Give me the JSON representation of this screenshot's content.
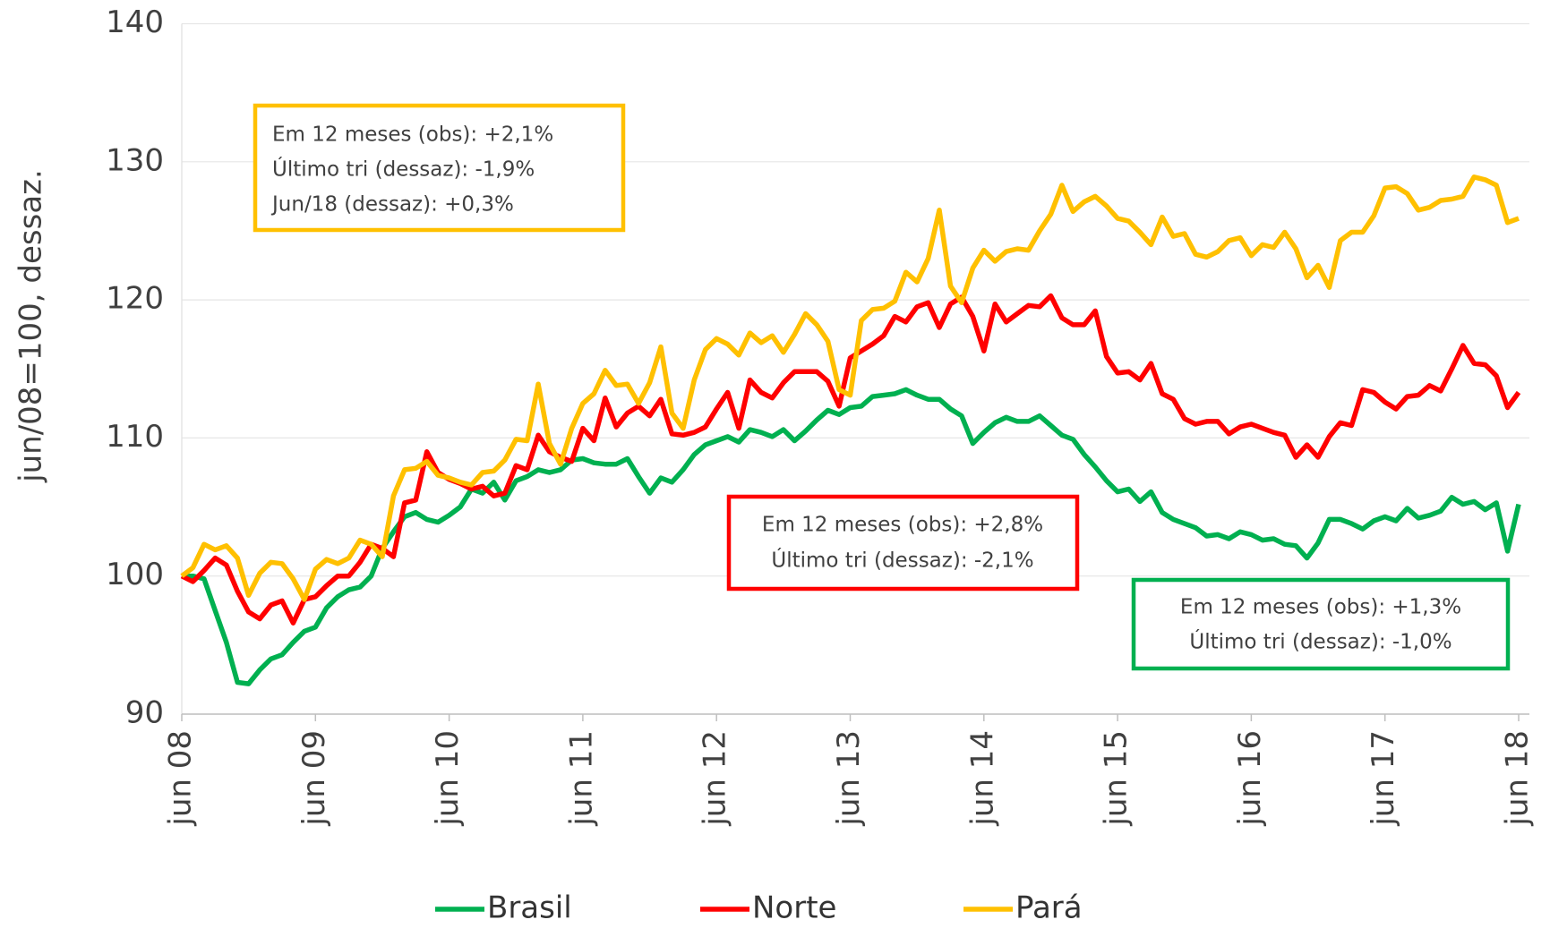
{
  "chart_data": {
    "type": "line",
    "y_label": "jun/08=100, dessaz.",
    "categories": [
      "jun 08",
      null,
      null,
      null,
      null,
      null,
      null,
      null,
      null,
      null,
      null,
      null,
      "jun 09",
      null,
      null,
      null,
      null,
      null,
      null,
      null,
      null,
      null,
      null,
      null,
      "jun 10",
      null,
      null,
      null,
      null,
      null,
      null,
      null,
      null,
      null,
      null,
      null,
      "jun 11",
      null,
      null,
      null,
      null,
      null,
      null,
      null,
      null,
      null,
      null,
      null,
      "jun 12",
      null,
      null,
      null,
      null,
      null,
      null,
      null,
      null,
      null,
      null,
      null,
      "jun 13",
      null,
      null,
      null,
      null,
      null,
      null,
      null,
      null,
      null,
      null,
      null,
      "jun 14",
      null,
      null,
      null,
      null,
      null,
      null,
      null,
      null,
      null,
      null,
      null,
      "jun 15",
      null,
      null,
      null,
      null,
      null,
      null,
      null,
      null,
      null,
      null,
      null,
      "jun 16",
      null,
      null,
      null,
      null,
      null,
      null,
      null,
      null,
      null,
      null,
      null,
      "jun 17",
      null,
      null,
      null,
      null,
      null,
      null,
      null,
      null,
      null,
      null,
      null,
      "jun 18"
    ],
    "series": [
      {
        "name": "Brasil",
        "color": "#00b050",
        "values": [
          100,
          100,
          99.8,
          97.5,
          95.2,
          92.3,
          92.2,
          93.2,
          94,
          94.3,
          95.2,
          96,
          96.3,
          97.7,
          98.5,
          99,
          99.2,
          100,
          102,
          103.2,
          104.3,
          104.6,
          104.1,
          103.9,
          104.4,
          105,
          106.3,
          106,
          106.8,
          105.5,
          106.9,
          107.2,
          107.7,
          107.5,
          107.7,
          108.4,
          108.5,
          108.2,
          108.1,
          108.1,
          108.5,
          107.2,
          106,
          107.1,
          106.8,
          107.7,
          108.8,
          109.5,
          109.8,
          110.1,
          109.7,
          110.6,
          110.4,
          110.1,
          110.6,
          109.8,
          110.5,
          111.3,
          112,
          111.7,
          112.2,
          112.3,
          113,
          113.1,
          113.2,
          113.5,
          113.1,
          112.8,
          112.8,
          112.1,
          111.6,
          109.6,
          110.4,
          111.1,
          111.5,
          111.2,
          111.2,
          111.6,
          110.9,
          110.2,
          109.9,
          108.8,
          107.9,
          106.9,
          106.1,
          106.3,
          105.4,
          106.1,
          104.6,
          104.1,
          103.8,
          103.5,
          102.9,
          103,
          102.7,
          103.2,
          103,
          102.6,
          102.7,
          102.3,
          102.2,
          101.3,
          102.4,
          104.1,
          104.1,
          103.8,
          103.4,
          104,
          104.3,
          104,
          104.9,
          104.2,
          104.4,
          104.7,
          105.7,
          105.2,
          105.4,
          104.8,
          105.3,
          101.8,
          105.2
        ]
      },
      {
        "name": "Norte",
        "color": "#ff0000",
        "values": [
          100,
          99.6,
          100.4,
          101.3,
          100.8,
          98.9,
          97.4,
          96.9,
          97.9,
          98.2,
          96.6,
          98.3,
          98.5,
          99.3,
          100,
          100,
          101,
          102.3,
          102,
          101.4,
          105.3,
          105.5,
          109,
          107.5,
          107,
          106.7,
          106.3,
          106.5,
          105.8,
          106,
          108,
          107.7,
          110.2,
          109,
          108.6,
          108.3,
          110.7,
          109.8,
          112.9,
          110.8,
          111.8,
          112.3,
          111.6,
          112.8,
          110.3,
          110.2,
          110.4,
          110.8,
          112.1,
          113.3,
          110.7,
          114.2,
          113.3,
          112.9,
          114,
          114.8,
          114.8,
          114.8,
          114.1,
          112.3,
          115.8,
          116.3,
          116.8,
          117.4,
          118.8,
          118.4,
          119.5,
          119.8,
          118,
          119.7,
          120.2,
          118.8,
          116.3,
          119.7,
          118.4,
          119,
          119.6,
          119.5,
          120.3,
          118.7,
          118.2,
          118.2,
          119.2,
          115.9,
          114.7,
          114.8,
          114.2,
          115.4,
          113.2,
          112.8,
          111.4,
          111,
          111.2,
          111.2,
          110.3,
          110.8,
          111,
          110.7,
          110.4,
          110.2,
          108.6,
          109.5,
          108.6,
          110.1,
          111.1,
          110.9,
          113.5,
          113.3,
          112.6,
          112.1,
          113,
          113.1,
          113.8,
          113.4,
          115,
          116.7,
          115.4,
          115.3,
          114.5,
          112.2,
          113.3
        ]
      },
      {
        "name": "Pará",
        "color": "#ffc000",
        "values": [
          100,
          100.6,
          102.3,
          101.9,
          102.2,
          101.3,
          98.6,
          100.2,
          101,
          100.9,
          99.8,
          98.3,
          100.5,
          101.2,
          100.9,
          101.3,
          102.6,
          102.3,
          101.4,
          105.8,
          107.7,
          107.8,
          108.3,
          107.3,
          107.1,
          106.8,
          106.6,
          107.5,
          107.6,
          108.4,
          109.9,
          109.8,
          113.9,
          109.6,
          108.1,
          110.7,
          112.5,
          113.2,
          114.9,
          113.8,
          113.9,
          112.5,
          114,
          116.6,
          111.8,
          110.7,
          114.2,
          116.4,
          117.2,
          116.8,
          116,
          117.6,
          116.9,
          117.4,
          116.2,
          117.5,
          119,
          118.2,
          117,
          113.5,
          113.1,
          118.5,
          119.3,
          119.4,
          119.9,
          122,
          121.3,
          123,
          126.5,
          121,
          119.8,
          122.3,
          123.6,
          122.8,
          123.5,
          123.7,
          123.6,
          125,
          126.2,
          128.3,
          126.4,
          127.1,
          127.5,
          126.8,
          125.9,
          125.7,
          124.9,
          124,
          126,
          124.6,
          124.8,
          123.3,
          123.1,
          123.5,
          124.3,
          124.5,
          123.2,
          124,
          123.8,
          124.9,
          123.7,
          121.6,
          122.5,
          120.9,
          124.3,
          124.9,
          124.9,
          126.1,
          128.1,
          128.2,
          127.7,
          126.5,
          126.7,
          127.2,
          127.3,
          127.5,
          128.9,
          128.7,
          128.3,
          125.6,
          125.9
        ]
      }
    ],
    "ylim": [
      90,
      140
    ],
    "yticks": [
      90,
      100,
      110,
      120,
      130,
      140
    ],
    "grid": true,
    "legend": "bottom",
    "annotations": [
      {
        "color": "#ffc000",
        "lines": [
          "Em 12 meses (obs): +2,1%",
          "Último tri (dessaz): -1,9%",
          "Jun/18 (dessaz): +0,3%"
        ]
      },
      {
        "color": "#ff0000",
        "lines": [
          "Em 12 meses (obs): +2,8%",
          "Último tri (dessaz): -2,1%"
        ]
      },
      {
        "color": "#00b050",
        "lines": [
          "Em 12 meses (obs): +1,3%",
          "Último tri (dessaz): -1,0%"
        ]
      }
    ]
  }
}
